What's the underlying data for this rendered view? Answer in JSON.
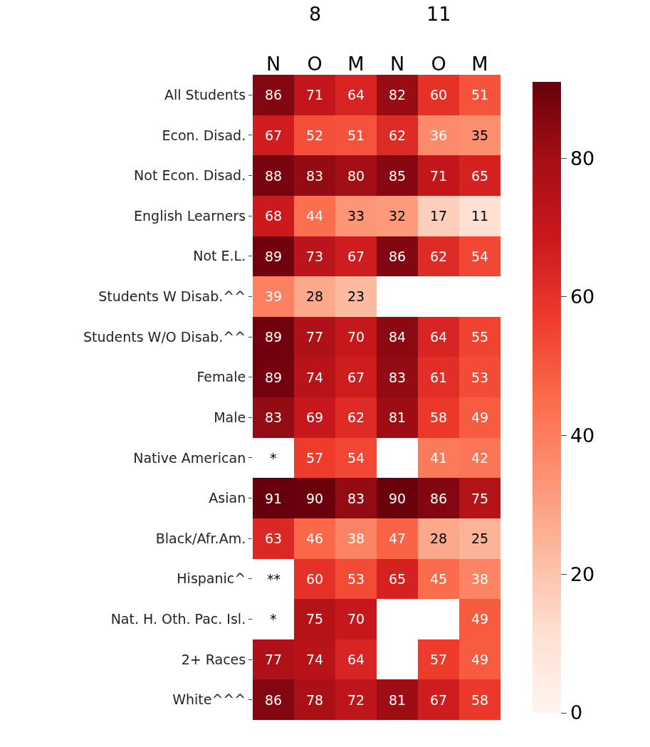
{
  "chart_data": {
    "type": "heatmap",
    "annotations": [
      "8",
      "11"
    ],
    "categories": [
      "N",
      "O",
      "M",
      "N",
      "O",
      "M"
    ],
    "y_categories": [
      "All Students",
      "Econ. Disad.",
      "Not Econ. Disad.",
      "English Learners",
      "Not E.L.",
      "Students W Disab.^^",
      "Students W/O Disab.^^",
      "Female",
      "Male",
      "Native American",
      "Asian",
      "Black/Afr.Am.",
      "Hispanic^",
      "Nat. H. Oth. Pac. Isl.",
      "2+ Races",
      "White^^^"
    ],
    "cells": [
      [
        86,
        71,
        64,
        82,
        60,
        51
      ],
      [
        67,
        52,
        51,
        62,
        36,
        35
      ],
      [
        88,
        83,
        80,
        85,
        71,
        65
      ],
      [
        68,
        44,
        33,
        32,
        17,
        11
      ],
      [
        89,
        73,
        67,
        86,
        62,
        54
      ],
      [
        39,
        28,
        23,
        null,
        null,
        null
      ],
      [
        89,
        77,
        70,
        84,
        64,
        55
      ],
      [
        89,
        74,
        67,
        83,
        61,
        53
      ],
      [
        83,
        69,
        62,
        81,
        58,
        49
      ],
      [
        null,
        57,
        54,
        null,
        41,
        42
      ],
      [
        91,
        90,
        83,
        90,
        86,
        75
      ],
      [
        63,
        46,
        38,
        47,
        28,
        25
      ],
      [
        null,
        60,
        53,
        65,
        45,
        38
      ],
      [
        null,
        75,
        70,
        null,
        null,
        49
      ],
      [
        77,
        74,
        64,
        null,
        57,
        49
      ],
      [
        86,
        78,
        72,
        81,
        67,
        58
      ]
    ],
    "cell_labels": [
      [
        "86",
        "71",
        "64",
        "82",
        "60",
        "51"
      ],
      [
        "67",
        "52",
        "51",
        "62",
        "36",
        "35"
      ],
      [
        "88",
        "83",
        "80",
        "85",
        "71",
        "65"
      ],
      [
        "68",
        "44",
        "33",
        "32",
        "17",
        "11"
      ],
      [
        "89",
        "73",
        "67",
        "86",
        "62",
        "54"
      ],
      [
        "39",
        "28",
        "23",
        null,
        null,
        null
      ],
      [
        "89",
        "77",
        "70",
        "84",
        "64",
        "55"
      ],
      [
        "89",
        "74",
        "67",
        "83",
        "61",
        "53"
      ],
      [
        "83",
        "69",
        "62",
        "81",
        "58",
        "49"
      ],
      [
        "*",
        "57",
        "54",
        null,
        "41",
        "42"
      ],
      [
        "91",
        "90",
        "83",
        "90",
        "86",
        "75"
      ],
      [
        "63",
        "46",
        "38",
        "47",
        "28",
        "25"
      ],
      [
        "**",
        "60",
        "53",
        "65",
        "45",
        "38"
      ],
      [
        "*",
        "75",
        "70",
        null,
        null,
        "49"
      ],
      [
        "77",
        "74",
        "64",
        null,
        "57",
        "49"
      ],
      [
        "86",
        "78",
        "72",
        "81",
        "67",
        "58"
      ]
    ],
    "clim": [
      0,
      91
    ],
    "cticks": [
      0,
      20,
      40,
      60,
      80
    ]
  }
}
